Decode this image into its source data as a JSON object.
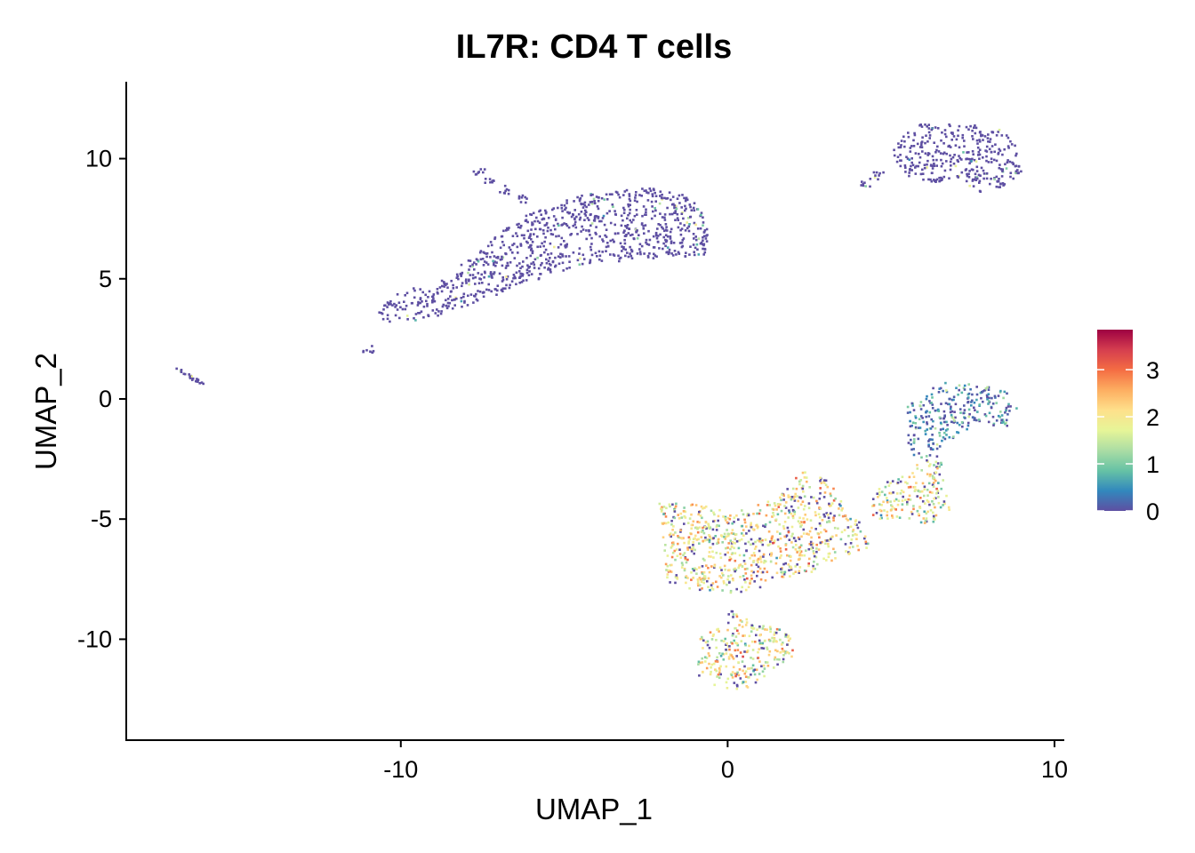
{
  "chart_data": {
    "type": "scatter",
    "title": "IL7R: CD4 T cells",
    "xlabel": "UMAP_1",
    "ylabel": "UMAP_2",
    "xlim": [
      -18.4,
      10.3
    ],
    "ylim": [
      -14.2,
      13.2
    ],
    "x_ticks": [
      {
        "value": -10,
        "label": "-10"
      },
      {
        "value": 0,
        "label": "0"
      },
      {
        "value": 10,
        "label": "10"
      }
    ],
    "y_ticks": [
      {
        "value": 10,
        "label": "10"
      },
      {
        "value": 5,
        "label": "5"
      },
      {
        "value": 0,
        "label": "0"
      },
      {
        "value": -5,
        "label": "-5"
      },
      {
        "value": -10,
        "label": "-10"
      }
    ],
    "color_scale": {
      "min": 0,
      "max": 3.85,
      "ticks": [
        {
          "value": 0,
          "label": "0"
        },
        {
          "value": 1,
          "label": "1"
        },
        {
          "value": 2,
          "label": "2"
        },
        {
          "value": 3,
          "label": "3"
        }
      ],
      "stops": [
        "#5e4fa2",
        "#3288bd",
        "#66c2a5",
        "#abdda4",
        "#e6f598",
        "#fee08b",
        "#fdae61",
        "#f46d43",
        "#d53e4f",
        "#9e0142"
      ]
    },
    "legend_position": "right",
    "grid": false,
    "clusters": [
      {
        "id": "cluster-top-left",
        "mean_expression": 0.05,
        "outline": [
          [
            -10.5,
            3.2
          ],
          [
            -9.2,
            3.3
          ],
          [
            -6.5,
            4.6
          ],
          [
            -4.5,
            5.6
          ],
          [
            -2.5,
            5.8
          ],
          [
            -0.6,
            6.0
          ],
          [
            -0.6,
            7.4
          ],
          [
            -1.2,
            8.5
          ],
          [
            -2.3,
            8.8
          ],
          [
            -4.5,
            8.5
          ],
          [
            -6.4,
            7.5
          ],
          [
            -7.4,
            6.4
          ],
          [
            -8.7,
            5.0
          ],
          [
            -10.3,
            4.3
          ],
          [
            -10.7,
            3.6
          ]
        ],
        "tail": [
          [
            -7.6,
            9.5
          ],
          [
            -7.3,
            9.0
          ],
          [
            -6.8,
            8.7
          ],
          [
            -6.3,
            8.3
          ],
          [
            -11.0,
            2.1
          ]
        ]
      },
      {
        "id": "cluster-far-left",
        "mean_expression": 0.0,
        "outline": [
          [
            -16.9,
            1.3
          ],
          [
            -16.6,
            1.2
          ],
          [
            -16.0,
            0.6
          ],
          [
            -16.3,
            0.7
          ]
        ]
      },
      {
        "id": "cluster-top-right",
        "mean_expression": 0.15,
        "outline": [
          [
            5.4,
            9.3
          ],
          [
            5.0,
            10.2
          ],
          [
            5.3,
            10.9
          ],
          [
            6.0,
            11.5
          ],
          [
            7.0,
            11.4
          ],
          [
            7.7,
            11.4
          ],
          [
            8.6,
            11.1
          ],
          [
            8.9,
            10.3
          ],
          [
            9.0,
            9.4
          ],
          [
            8.5,
            8.8
          ],
          [
            7.6,
            8.5
          ],
          [
            7.2,
            9.2
          ],
          [
            6.3,
            9.0
          ]
        ],
        "tail": [
          [
            4.2,
            9.0
          ],
          [
            4.6,
            9.3
          ]
        ]
      },
      {
        "id": "cluster-mid-right",
        "mean_expression": 0.4,
        "outline": [
          [
            5.5,
            -1.8
          ],
          [
            5.5,
            -0.3
          ],
          [
            6.5,
            0.7
          ],
          [
            7.5,
            0.6
          ],
          [
            8.5,
            0.4
          ],
          [
            9.0,
            -0.5
          ],
          [
            8.6,
            -1.2
          ],
          [
            7.7,
            -1.0
          ],
          [
            6.7,
            -1.8
          ],
          [
            6.2,
            -2.5
          ],
          [
            5.7,
            -2.4
          ]
        ]
      },
      {
        "id": "cluster-bridge",
        "mean_expression": 1.8,
        "outline": [
          [
            4.4,
            -5.0
          ],
          [
            4.4,
            -4.0
          ],
          [
            5.0,
            -3.3
          ],
          [
            5.7,
            -2.8
          ],
          [
            6.5,
            -2.3
          ],
          [
            6.6,
            -3.2
          ],
          [
            6.8,
            -4.7
          ],
          [
            6.2,
            -5.2
          ],
          [
            5.3,
            -5.0
          ]
        ]
      },
      {
        "id": "cluster-bottom-main",
        "mean_expression": 2.0,
        "outline": [
          [
            -2.1,
            -4.3
          ],
          [
            -1.9,
            -7.5
          ],
          [
            -1.6,
            -7.8
          ],
          [
            -0.8,
            -8.0
          ],
          [
            0.6,
            -8.1
          ],
          [
            1.6,
            -7.5
          ],
          [
            2.6,
            -7.2
          ],
          [
            3.7,
            -6.6
          ],
          [
            4.3,
            -6.3
          ],
          [
            4.4,
            -5.9
          ],
          [
            4.1,
            -5.2
          ],
          [
            3.5,
            -4.3
          ],
          [
            3.1,
            -3.4
          ],
          [
            2.3,
            -3.0
          ],
          [
            1.6,
            -4.0
          ],
          [
            0.3,
            -4.7
          ],
          [
            -1.0,
            -4.4
          ]
        ]
      },
      {
        "id": "cluster-bottom-lower",
        "mean_expression": 1.9,
        "outline": [
          [
            -0.9,
            -10.2
          ],
          [
            -0.9,
            -11.5
          ],
          [
            -0.3,
            -12.0
          ],
          [
            0.6,
            -12.1
          ],
          [
            1.3,
            -11.4
          ],
          [
            2.0,
            -10.7
          ],
          [
            2.1,
            -10.0
          ],
          [
            1.7,
            -9.6
          ],
          [
            0.7,
            -9.3
          ],
          [
            0.2,
            -8.7
          ],
          [
            -0.3,
            -9.4
          ],
          [
            -0.8,
            -9.7
          ]
        ]
      }
    ]
  }
}
